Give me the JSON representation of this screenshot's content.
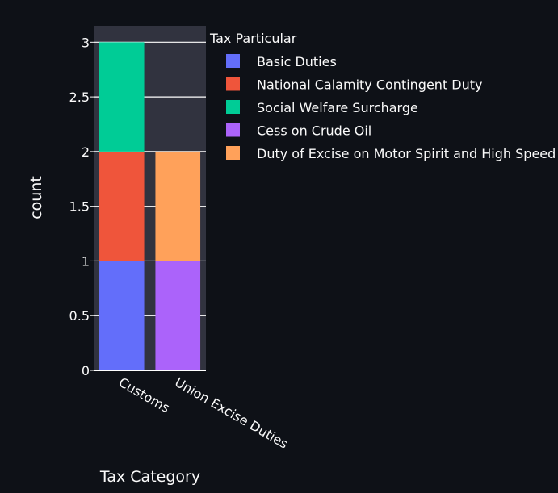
{
  "chart_data": {
    "type": "bar",
    "barmode": "stack",
    "xlabel": "Tax Category",
    "ylabel": "count",
    "categories": [
      "Customs",
      "Union Excise Duties"
    ],
    "ylim": [
      0,
      3.15
    ],
    "yticks": [
      0,
      0.5,
      1,
      1.5,
      2,
      2.5,
      3
    ],
    "ytick_labels": [
      "0",
      "0.5",
      "1",
      "1.5",
      "2",
      "2.5",
      "3"
    ],
    "grid": true,
    "legend": {
      "title": "Tax Particular",
      "position": "right",
      "entries": [
        "Basic Duties",
        "National Calamity Contingent Duty",
        "Social Welfare Surcharge",
        "Cess on Crude Oil",
        "Duty of Excise on Motor Spirit and High Speed"
      ]
    },
    "series": [
      {
        "name": "Basic Duties",
        "color": "#636efa",
        "values": [
          1,
          0
        ]
      },
      {
        "name": "National Calamity Contingent Duty",
        "color": "#ef553b",
        "values": [
          1,
          0
        ]
      },
      {
        "name": "Social Welfare Surcharge",
        "color": "#00cc96",
        "values": [
          1,
          0
        ]
      },
      {
        "name": "Cess on Crude Oil",
        "color": "#ab63fa",
        "values": [
          0,
          1
        ]
      },
      {
        "name": "Duty of Excise on Motor Spirit and High Speed",
        "color": "#ffa15a",
        "values": [
          0,
          1
        ]
      }
    ]
  },
  "colors": {
    "background": "#0e1117",
    "plot_background": "#31333f",
    "text": "#fafafa",
    "grid": "#ffffff"
  }
}
